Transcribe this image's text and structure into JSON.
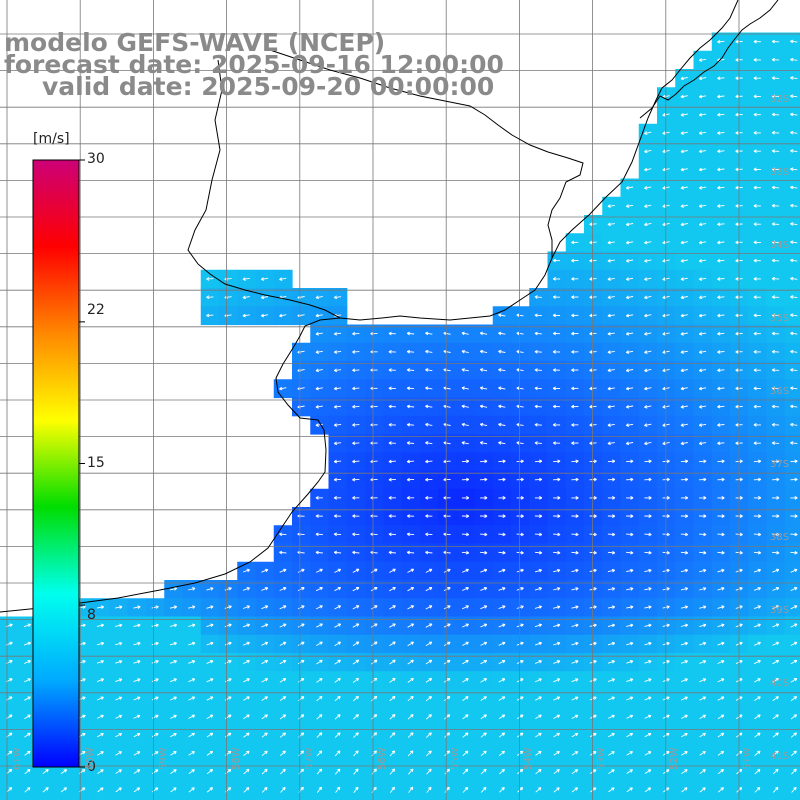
{
  "title": {
    "line1": "modelo GEFS-WAVE (NCEP)",
    "line2": "forecast date: 2025-09-16 12:00:00",
    "line3": "valid date: 2025-09-20 00:00:00"
  },
  "colorbar": {
    "unit": "[m/s]",
    "min": 0,
    "max": 30,
    "ticks": [
      "30",
      "22",
      "15",
      "8",
      "0"
    ],
    "tick_values": [
      30,
      22,
      15,
      8,
      0
    ],
    "colors": [
      "#0000ff",
      "#00aaff",
      "#00ffee",
      "#00dd00",
      "#ffff00",
      "#ff8800",
      "#ff0000",
      "#cc0077"
    ]
  },
  "map": {
    "field": "wind speed",
    "lat_labels": [
      "32S",
      "33S",
      "34S",
      "35S",
      "36S",
      "37S",
      "38S",
      "39S",
      "40S",
      "41S"
    ],
    "lon_labels": [
      "61W",
      "60W",
      "59W",
      "58W",
      "57W",
      "56W",
      "55W",
      "54W",
      "53W",
      "52W",
      "51W"
    ],
    "colors": {
      "land": "#ffffff",
      "coast": "#000000",
      "grid": "#777777",
      "arrow": "#ffffff",
      "sea_dark": "#0a28ff",
      "sea_mid": "#1470ff",
      "sea_light": "#12c8f0"
    }
  }
}
